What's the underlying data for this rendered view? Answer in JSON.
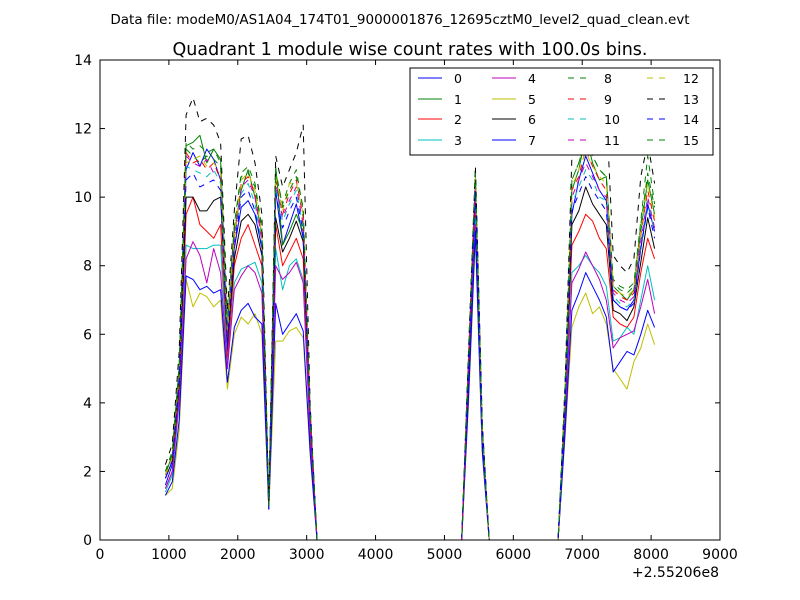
{
  "chart_data": {
    "type": "line",
    "suptitle": "Data file: modeM0/AS1A04_174T01_9000001876_12695cztM0_level2_quad_clean.evt",
    "title": "Quadrant 1 module wise count rates with 100.0s bins.",
    "xlabel": "",
    "ylabel": "",
    "offset_label": "+2.55206e8",
    "xlim": [
      0,
      9000
    ],
    "ylim": [
      0,
      14
    ],
    "xticks": [
      0,
      1000,
      2000,
      3000,
      4000,
      5000,
      6000,
      7000,
      8000,
      9000
    ],
    "yticks": [
      0,
      2,
      4,
      6,
      8,
      10,
      12,
      14
    ],
    "grid": false,
    "legend_position": "top-right",
    "legend_columns": 4,
    "x": [
      950,
      1050,
      1150,
      1250,
      1350,
      1450,
      1550,
      1650,
      1750,
      1850,
      1950,
      2050,
      2150,
      2250,
      2350,
      2450,
      2550,
      2650,
      2750,
      2850,
      2950,
      3050,
      3150,
      5250,
      5350,
      5450,
      5550,
      5650,
      6650,
      6750,
      6850,
      6950,
      7050,
      7150,
      7250,
      7350,
      7450,
      7550,
      7650,
      7750,
      7850,
      7950,
      8050
    ],
    "series": [
      {
        "name": "0",
        "color": "#0000ff",
        "dash": "solid",
        "values": [
          1.6,
          2.2,
          4.5,
          10.8,
          11.3,
          10.9,
          11.4,
          11.1,
          10.5,
          5.5,
          8.5,
          9.7,
          9.9,
          9.5,
          8.5,
          1.0,
          10.2,
          8.6,
          9.2,
          9.8,
          8.8,
          3.5,
          0,
          0,
          5.0,
          10.0,
          3.0,
          0,
          0,
          4.0,
          9.5,
          10.5,
          11.2,
          10.7,
          10.2,
          9.9,
          7.0,
          6.8,
          6.7,
          7.0,
          8.5,
          9.8,
          9.0
        ]
      },
      {
        "name": "1",
        "color": "#008000",
        "dash": "solid",
        "values": [
          1.9,
          2.5,
          5.0,
          11.5,
          11.6,
          11.8,
          11.0,
          11.4,
          11.1,
          6.2,
          9.0,
          10.2,
          10.8,
          10.0,
          8.9,
          1.0,
          10.9,
          8.6,
          9.0,
          9.5,
          9.0,
          3.8,
          0,
          0,
          5.3,
          10.5,
          3.2,
          0,
          0,
          4.2,
          10.2,
          10.8,
          11.8,
          11.0,
          10.5,
          10.6,
          7.4,
          7.2,
          7.0,
          7.3,
          9.0,
          10.5,
          9.5
        ]
      },
      {
        "name": "2",
        "color": "#ff0000",
        "dash": "solid",
        "values": [
          1.5,
          2.0,
          4.2,
          9.5,
          10.0,
          9.2,
          9.0,
          8.8,
          9.2,
          5.2,
          8.0,
          8.8,
          9.2,
          8.6,
          8.0,
          0.9,
          9.2,
          8.0,
          8.4,
          8.8,
          8.2,
          3.3,
          0,
          0,
          4.7,
          9.6,
          2.9,
          0,
          0,
          3.8,
          8.6,
          9.0,
          9.5,
          9.3,
          8.8,
          8.5,
          6.5,
          6.3,
          6.2,
          6.5,
          7.8,
          8.8,
          8.2
        ]
      },
      {
        "name": "3",
        "color": "#00bfbf",
        "dash": "solid",
        "values": [
          1.4,
          1.9,
          4.0,
          8.6,
          8.5,
          8.5,
          8.5,
          8.6,
          8.6,
          5.0,
          7.5,
          7.9,
          8.0,
          8.1,
          7.5,
          0.9,
          8.5,
          7.3,
          8.0,
          8.2,
          7.6,
          3.1,
          0,
          0,
          4.5,
          9.4,
          2.8,
          0,
          0,
          3.5,
          7.8,
          8.0,
          8.3,
          8.0,
          7.8,
          7.4,
          5.8,
          5.9,
          6.2,
          6.0,
          7.0,
          8.0,
          7.0
        ]
      },
      {
        "name": "4",
        "color": "#bf00bf",
        "dash": "solid",
        "values": [
          1.5,
          2.0,
          4.1,
          8.2,
          8.7,
          8.3,
          7.5,
          8.5,
          7.8,
          5.0,
          7.3,
          7.7,
          8.0,
          7.8,
          7.2,
          0.9,
          8.0,
          7.6,
          7.8,
          8.1,
          7.5,
          3.0,
          0,
          0,
          4.4,
          9.2,
          2.7,
          0,
          0,
          3.4,
          7.5,
          7.9,
          8.4,
          8.0,
          7.6,
          7.0,
          5.6,
          5.9,
          6.0,
          6.1,
          6.8,
          7.6,
          6.6
        ]
      },
      {
        "name": "5",
        "color": "#bfbf00",
        "dash": "solid",
        "values": [
          1.3,
          1.5,
          3.2,
          7.6,
          6.8,
          7.2,
          7.1,
          6.8,
          7.0,
          4.4,
          6.0,
          6.5,
          6.3,
          6.6,
          6.0,
          0.9,
          5.8,
          5.8,
          6.1,
          6.2,
          5.9,
          2.5,
          0,
          0,
          4.0,
          8.8,
          2.5,
          0,
          0,
          3.0,
          6.2,
          6.8,
          7.2,
          6.6,
          6.8,
          6.3,
          5.0,
          4.7,
          4.4,
          5.2,
          5.6,
          6.3,
          5.7
        ]
      },
      {
        "name": "6",
        "color": "#000000",
        "dash": "solid",
        "values": [
          1.8,
          2.3,
          4.6,
          10.0,
          10.0,
          9.6,
          9.6,
          9.9,
          10.0,
          5.8,
          8.2,
          9.3,
          9.5,
          9.2,
          8.3,
          1.0,
          9.4,
          8.4,
          8.8,
          9.3,
          8.7,
          3.6,
          0,
          0,
          5.0,
          10.3,
          3.0,
          0,
          0,
          3.9,
          9.2,
          9.6,
          10.3,
          9.8,
          9.5,
          9.2,
          6.7,
          6.6,
          6.4,
          6.8,
          8.1,
          9.4,
          8.5
        ]
      },
      {
        "name": "7",
        "color": "#0000ff",
        "dash": "solid",
        "values": [
          1.3,
          1.7,
          3.5,
          7.7,
          7.6,
          7.3,
          7.4,
          7.2,
          7.3,
          4.6,
          6.2,
          6.7,
          6.9,
          6.5,
          6.3,
          0.9,
          6.9,
          6.0,
          6.3,
          6.6,
          6.1,
          2.6,
          0,
          0,
          4.2,
          9.0,
          2.6,
          0,
          0,
          3.1,
          6.7,
          7.2,
          7.8,
          7.4,
          7.0,
          6.5,
          4.9,
          5.2,
          5.5,
          5.4,
          6.0,
          6.7,
          6.2
        ]
      },
      {
        "name": "8",
        "color": "#008000",
        "dash": "dashed",
        "values": [
          2.0,
          2.6,
          5.1,
          11.4,
          11.2,
          11.0,
          11.2,
          11.1,
          10.9,
          6.3,
          9.1,
          10.6,
          10.7,
          10.3,
          9.0,
          1.0,
          10.7,
          9.8,
          10.4,
          10.8,
          9.6,
          3.8,
          0,
          0,
          5.4,
          10.8,
          3.3,
          0,
          0,
          4.3,
          10.5,
          11.0,
          11.6,
          11.2,
          10.8,
          10.6,
          7.5,
          7.3,
          7.2,
          7.4,
          9.2,
          10.7,
          9.7
        ]
      },
      {
        "name": "9",
        "color": "#ff0000",
        "dash": "dashed",
        "values": [
          1.9,
          2.4,
          4.8,
          11.3,
          11.0,
          11.1,
          10.8,
          11.0,
          10.5,
          6.0,
          8.8,
          10.4,
          10.6,
          10.1,
          8.8,
          1.0,
          10.5,
          9.5,
          10.1,
          10.5,
          9.4,
          3.7,
          0,
          0,
          5.2,
          10.5,
          3.2,
          0,
          0,
          4.1,
          10.2,
          10.6,
          11.4,
          10.9,
          10.5,
          10.2,
          7.3,
          7.1,
          7.0,
          7.2,
          8.9,
          10.2,
          9.3
        ]
      },
      {
        "name": "10",
        "color": "#00bfbf",
        "dash": "dashed",
        "values": [
          1.8,
          2.3,
          4.7,
          10.9,
          10.8,
          10.7,
          10.6,
          10.8,
          10.4,
          5.9,
          8.6,
          10.1,
          10.4,
          9.8,
          8.6,
          1.0,
          10.3,
          9.3,
          9.8,
          10.2,
          9.1,
          3.6,
          0,
          0,
          5.1,
          10.3,
          3.1,
          0,
          0,
          4.0,
          9.8,
          10.3,
          10.8,
          10.5,
          10.0,
          9.9,
          7.1,
          6.9,
          6.8,
          7.0,
          8.6,
          9.9,
          9.0
        ]
      },
      {
        "name": "11",
        "color": "#bf00bf",
        "dash": "dashed",
        "values": [
          1.8,
          2.3,
          4.6,
          11.2,
          11.0,
          10.9,
          11.1,
          10.7,
          10.6,
          6.0,
          8.7,
          10.3,
          10.5,
          10.0,
          8.7,
          1.0,
          10.4,
          9.4,
          9.9,
          10.3,
          9.2,
          3.6,
          0,
          0,
          5.1,
          10.4,
          3.1,
          0,
          0,
          4.1,
          10.0,
          10.5,
          11.0,
          10.6,
          10.2,
          10.0,
          7.2,
          7.0,
          6.9,
          7.1,
          8.7,
          10.0,
          9.1
        ]
      },
      {
        "name": "12",
        "color": "#bfbf00",
        "dash": "dashed",
        "values": [
          1.9,
          2.4,
          4.8,
          11.0,
          11.1,
          11.2,
          10.9,
          11.0,
          10.7,
          6.1,
          8.9,
          10.5,
          10.7,
          10.2,
          8.9,
          1.0,
          10.6,
          9.6,
          10.4,
          10.4,
          9.5,
          3.7,
          0,
          0,
          5.3,
          10.6,
          3.2,
          0,
          0,
          4.2,
          10.3,
          10.8,
          11.3,
          10.9,
          10.6,
          10.4,
          7.4,
          7.2,
          7.1,
          7.3,
          9.0,
          10.4,
          9.4
        ]
      },
      {
        "name": "13",
        "color": "#000000",
        "dash": "dashed",
        "values": [
          2.2,
          2.8,
          5.5,
          12.4,
          12.9,
          12.2,
          12.3,
          12.1,
          11.6,
          6.7,
          9.6,
          11.7,
          11.8,
          11.0,
          9.5,
          1.0,
          11.2,
          10.3,
          10.8,
          11.3,
          12.1,
          4.0,
          0,
          0,
          5.6,
          10.9,
          3.4,
          0,
          0,
          4.5,
          11.2,
          12.0,
          12.9,
          12.1,
          11.8,
          12.6,
          8.3,
          8.0,
          7.8,
          8.2,
          10.6,
          11.6,
          10.4
        ]
      },
      {
        "name": "14",
        "color": "#0000ff",
        "dash": "dashed",
        "values": [
          1.8,
          2.3,
          4.6,
          10.5,
          10.7,
          10.3,
          10.4,
          10.5,
          10.2,
          5.8,
          8.5,
          10.0,
          10.2,
          9.6,
          8.5,
          1.0,
          10.1,
          9.1,
          9.6,
          10.0,
          9.0,
          3.6,
          0,
          0,
          5.0,
          10.2,
          3.1,
          0,
          0,
          4.0,
          9.6,
          10.1,
          10.6,
          10.2,
          9.9,
          9.6,
          7.0,
          6.8,
          6.7,
          6.9,
          8.5,
          9.7,
          8.8
        ]
      },
      {
        "name": "15",
        "color": "#008000",
        "dash": "dashed",
        "values": [
          2.0,
          2.5,
          5.0,
          11.6,
          11.4,
          11.5,
          11.3,
          11.4,
          11.0,
          6.3,
          9.2,
          10.7,
          10.9,
          10.4,
          9.1,
          1.0,
          10.8,
          9.7,
          10.2,
          10.6,
          9.7,
          3.8,
          0,
          0,
          5.4,
          10.7,
          3.3,
          0,
          0,
          4.3,
          10.5,
          11.0,
          11.7,
          11.2,
          10.8,
          10.6,
          7.6,
          7.4,
          7.3,
          7.5,
          9.3,
          11.2,
          9.8
        ]
      }
    ]
  }
}
